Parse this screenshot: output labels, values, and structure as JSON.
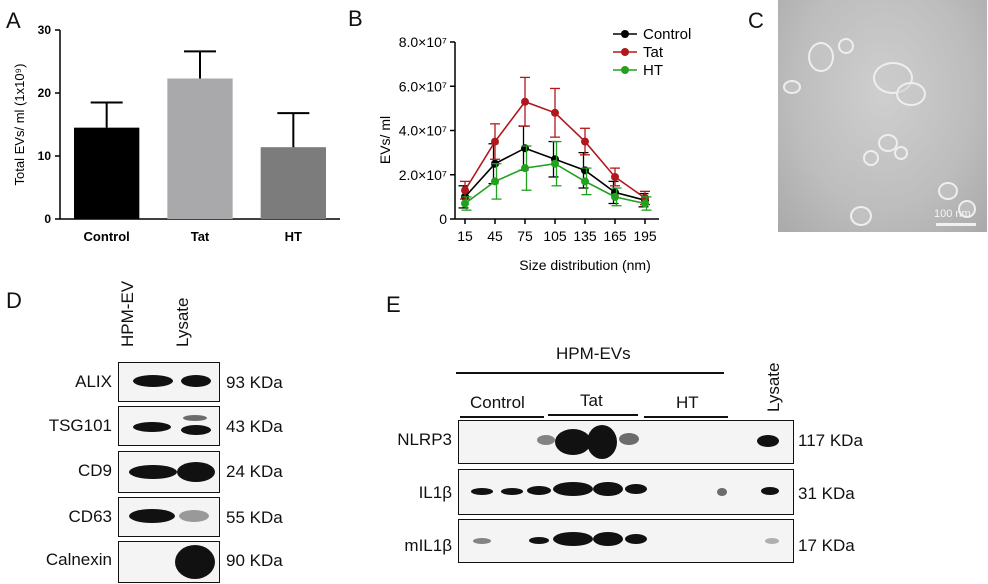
{
  "panels": {
    "a": "A",
    "b": "B",
    "c": "C",
    "d": "D",
    "e": "E"
  },
  "chart_data": [
    {
      "type": "bar",
      "categories": [
        "Control",
        "Tat",
        "HT"
      ],
      "values": [
        14.5,
        22.3,
        11.4
      ],
      "errors": [
        4.0,
        4.3,
        5.4
      ],
      "ylabel": "Total EVs/ ml (1x10⁹)",
      "ylim": [
        0,
        30
      ],
      "yticks": [
        "0",
        "10",
        "20",
        "30"
      ],
      "colors": [
        "#000000",
        "#a9a9ab",
        "#7c7c7c"
      ]
    },
    {
      "type": "line",
      "x": [
        15,
        45,
        75,
        105,
        135,
        165,
        195
      ],
      "xticks": [
        "15",
        "45",
        "75",
        "105",
        "135",
        "165",
        "195"
      ],
      "xlabel": "Size distribution (nm)",
      "ylabel": "EVs/ ml",
      "ylim": [
        0,
        80000000.0
      ],
      "yticks": [
        "0",
        "2.0×10⁷",
        "4.0×10⁷",
        "6.0×10⁷",
        "8.0×10⁷"
      ],
      "legend": "top-right",
      "series": [
        {
          "name": "Control",
          "color": "#000000",
          "values": [
            10000000.0,
            25000000.0,
            32000000.0,
            27000000.0,
            22000000.0,
            12000000.0,
            8500000.0
          ],
          "errors": [
            5000000.0,
            9000000.0,
            10000000.0,
            8000000.0,
            8000000.0,
            5000000.0,
            3000000.0
          ]
        },
        {
          "name": "Tat",
          "color": "#b2181b",
          "values": [
            13000000.0,
            35000000.0,
            53000000.0,
            48000000.0,
            35000000.0,
            19000000.0,
            9500000.0
          ],
          "errors": [
            4000000.0,
            8000000.0,
            11000000.0,
            11000000.0,
            6000000.0,
            4000000.0,
            3000000.0
          ]
        },
        {
          "name": "HT",
          "color": "#22a11f",
          "values": [
            7000000.0,
            17000000.0,
            23000000.0,
            25000000.0,
            17000000.0,
            10000000.0,
            7000000.0
          ],
          "errors": [
            3000000.0,
            8000000.0,
            10000000.0,
            10000000.0,
            6000000.0,
            4000000.0,
            3000000.0
          ]
        }
      ]
    }
  ],
  "micrograph": {
    "scale_bar": "100 nm"
  },
  "panel_d": {
    "columns": [
      "HPM-EV",
      "Lysate"
    ],
    "rows": [
      {
        "label": "ALIX",
        "kda": "93 KDa"
      },
      {
        "label": "TSG101",
        "kda": "43 KDa"
      },
      {
        "label": "CD9",
        "kda": "24 KDa"
      },
      {
        "label": "CD63",
        "kda": "55 KDa"
      },
      {
        "label": "Calnexin",
        "kda": "90 KDa"
      }
    ]
  },
  "panel_e": {
    "header": "HPM-EVs",
    "groups": [
      "Control",
      "Tat",
      "HT"
    ],
    "lysate": "Lysate",
    "rows": [
      {
        "label": "NLRP3",
        "kda": "117 KDa"
      },
      {
        "label": "IL1β",
        "kda": "31 KDa"
      },
      {
        "label": "mIL1β",
        "kda": "17 KDa"
      }
    ]
  }
}
